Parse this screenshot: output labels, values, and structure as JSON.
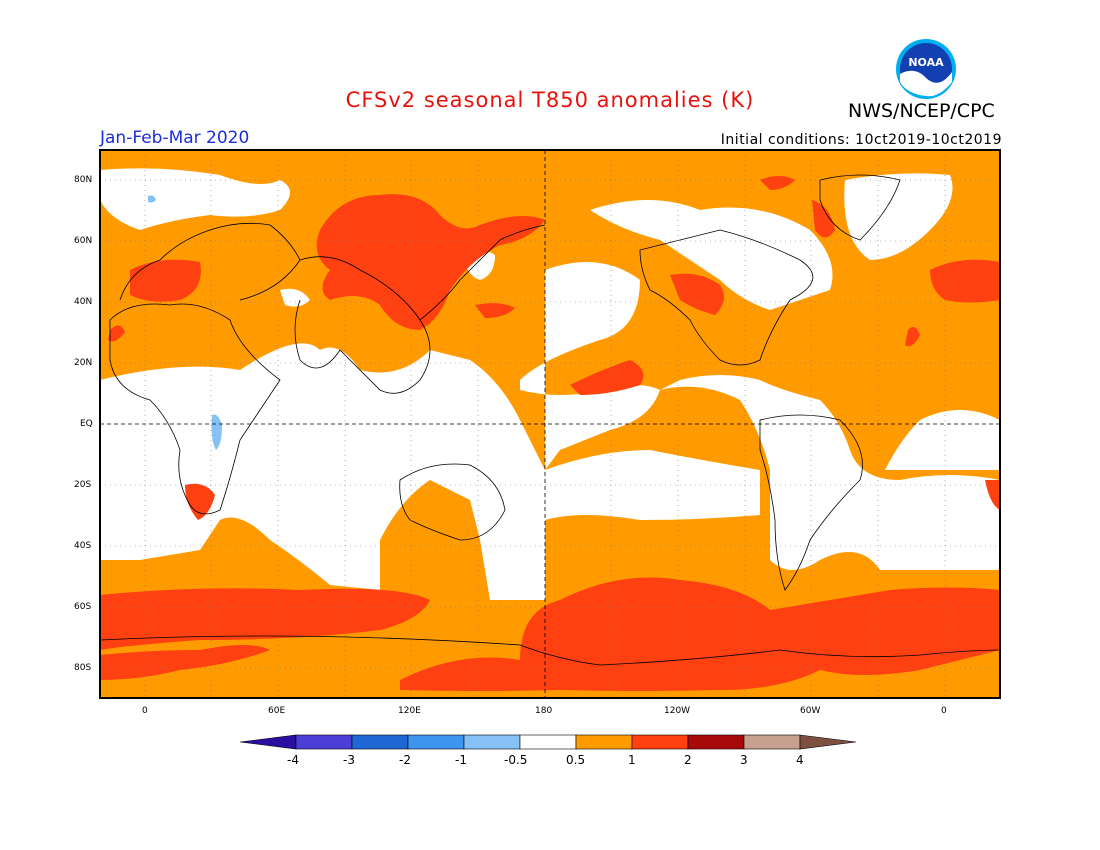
{
  "header": {
    "title": "CFSv2 seasonal T850 anomalies (K)",
    "agency": "NWS/NCEP/CPC",
    "logo_text": "NOAA",
    "season": "Jan-Feb-Mar 2020",
    "initial_conditions": "Initial conditions: 10ct2019-10ct2019"
  },
  "axes": {
    "lat_labels": [
      "80N",
      "60N",
      "40N",
      "20N",
      "EQ",
      "20S",
      "40S",
      "60S",
      "80S"
    ],
    "lon_labels": [
      "0",
      "60E",
      "120E",
      "180",
      "120W",
      "60W",
      "0"
    ]
  },
  "colorbar": {
    "labels": [
      "-4",
      "-3",
      "-2",
      "-1",
      "-0.5",
      "0.5",
      "1",
      "2",
      "3",
      "4"
    ],
    "colors": [
      "#2b0fa0",
      "#4b3fd6",
      "#1f67d4",
      "#3d95ee",
      "#86c1f5",
      "#ffffff",
      "#ff9b00",
      "#ff4010",
      "#a80a0a",
      "#c8a090",
      "#7d5040"
    ]
  },
  "colors": {
    "orange": "#ff9b00",
    "red": "#ff4010",
    "light_blue": "#86c1f5",
    "title_red": "#e8120c",
    "season_blue": "#1a2fd8"
  }
}
